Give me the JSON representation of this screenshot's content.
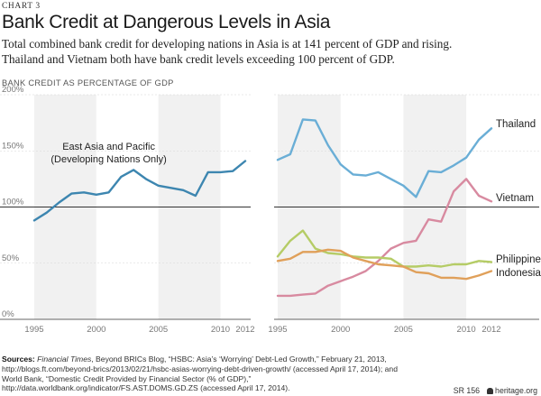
{
  "header": {
    "kicker": "CHART 3",
    "title": "Bank Credit at Dangerous Levels in Asia",
    "subtitle_line1": "Total combined bank credit for developing nations in Asia is at 141 percent of GDP and rising.",
    "subtitle_line2": "Thailand and Vietnam both have bank credit levels exceeding 100 percent of GDP."
  },
  "chart_data": {
    "type": "line",
    "ylabel": "BANK CREDIT AS PERCENTAGE OF GDP",
    "ylim": [
      0,
      200
    ],
    "yticks": [
      "0%",
      "50%",
      "100%",
      "150%",
      "200%"
    ],
    "reference_line": 100,
    "panels": [
      {
        "annotation": [
          "East Asia and Pacific",
          "(Developing Nations Only)"
        ],
        "xticks": [
          "1995",
          "2000",
          "2005",
          "2010",
          "2012"
        ],
        "series": [
          {
            "name": "East Asia and Pacific (Developing Nations Only)",
            "color": "#3d86b0",
            "x": [
              1995,
              1996,
              1997,
              1998,
              1999,
              2000,
              2001,
              2002,
              2003,
              2004,
              2005,
              2006,
              2007,
              2008,
              2009,
              2010,
              2011,
              2012
            ],
            "values": [
              88,
              95,
              104,
              112,
              113,
              111,
              113,
              127,
              133,
              125,
              119,
              117,
              115,
              110,
              131,
              131,
              132,
              141
            ]
          }
        ]
      },
      {
        "xticks": [
          "1995",
          "2000",
          "2005",
          "2010",
          "2012"
        ],
        "series": [
          {
            "name": "Thailand",
            "color": "#6aaed6",
            "x": [
              1995,
              1996,
              1997,
              1998,
              1999,
              2000,
              2001,
              2002,
              2003,
              2004,
              2005,
              2006,
              2007,
              2008,
              2009,
              2010,
              2011,
              2012
            ],
            "values": [
              142,
              147,
              178,
              177,
              155,
              138,
              129,
              128,
              131,
              125,
              119,
              109,
              132,
              131,
              137,
              144,
              160,
              170
            ]
          },
          {
            "name": "Vietnam",
            "color": "#d88aa0",
            "x": [
              1995,
              1996,
              1997,
              1998,
              1999,
              2000,
              2001,
              2002,
              2003,
              2004,
              2005,
              2006,
              2007,
              2008,
              2009,
              2010,
              2011,
              2012
            ],
            "values": [
              21,
              21,
              22,
              23,
              30,
              34,
              38,
              43,
              52,
              63,
              68,
              70,
              89,
              87,
              114,
              125,
              110,
              105
            ]
          },
          {
            "name": "Philippines",
            "color": "#b5cc66",
            "x": [
              1995,
              1996,
              1997,
              1998,
              1999,
              2000,
              2001,
              2002,
              2003,
              2004,
              2005,
              2006,
              2007,
              2008,
              2009,
              2010,
              2011,
              2012
            ],
            "values": [
              56,
              70,
              79,
              63,
              59,
              58,
              56,
              55,
              55,
              54,
              47,
              47,
              48,
              47,
              49,
              49,
              52,
              51
            ]
          },
          {
            "name": "Indonesia",
            "color": "#e0a05a",
            "x": [
              1995,
              1996,
              1997,
              1998,
              1999,
              2000,
              2001,
              2002,
              2003,
              2004,
              2005,
              2006,
              2007,
              2008,
              2009,
              2010,
              2011,
              2012
            ],
            "values": [
              52,
              54,
              60,
              60,
              62,
              61,
              55,
              52,
              49,
              48,
              47,
              42,
              41,
              37,
              37,
              36,
              39,
              43
            ]
          }
        ]
      }
    ]
  },
  "footer": {
    "sources_label": "Sources:",
    "sources_text_1": " Financial Times",
    "sources_text_2": ", Beyond BRICs Blog, “HSBC: Asia’s ‘Worrying’ Debt-Led Growth,” February 21, 2013, http://blogs.ft.com/beyond-brics/2013/02/21/hsbc-asias-worrying-debt-driven-growth/ (accessed April 17, 2014); and World Bank, “Domestic Credit Provided by Financial Sector (% of GDP),” http://data.worldbank.org/indicator/FS.AST.DOMS.GD.ZS (accessed April 17, 2014).",
    "report_id": "SR 156",
    "site": "heritage.org"
  }
}
